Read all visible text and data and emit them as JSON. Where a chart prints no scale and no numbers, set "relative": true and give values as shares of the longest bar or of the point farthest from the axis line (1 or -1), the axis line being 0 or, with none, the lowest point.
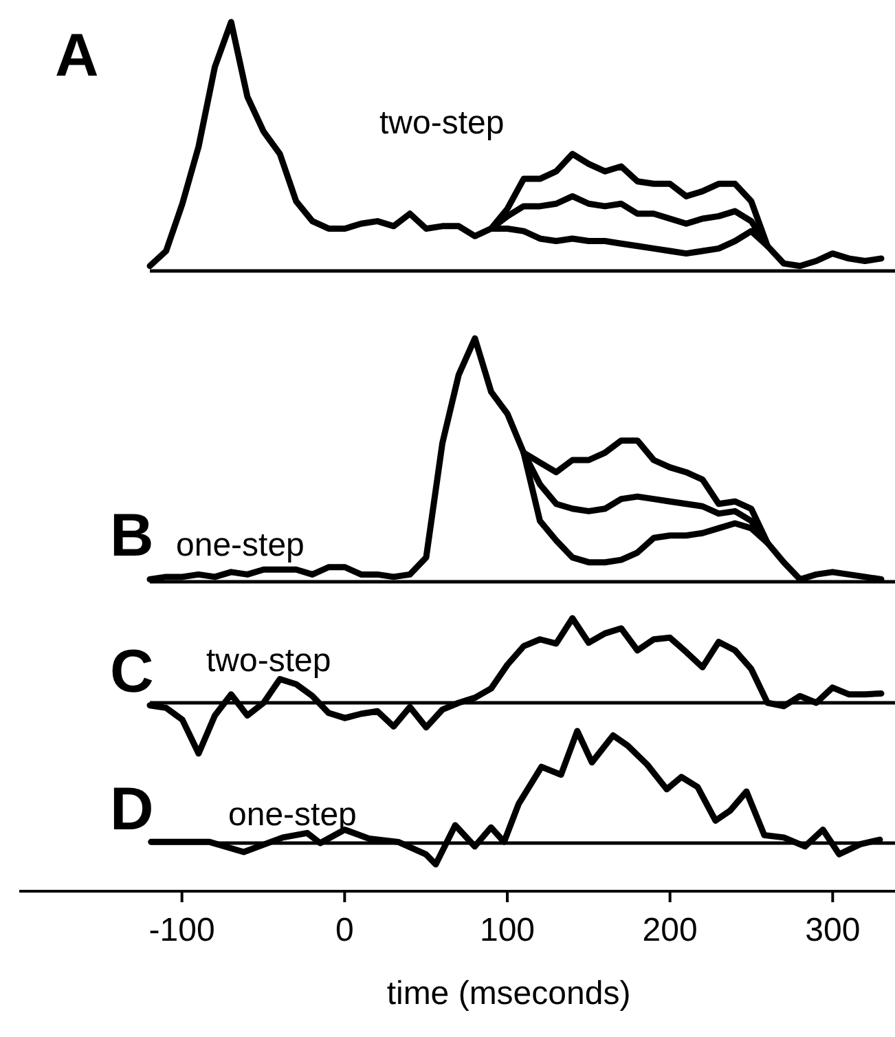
{
  "chart_data": [
    {
      "type": "line",
      "title": "A",
      "annotations": [
        "two-step"
      ],
      "relative": true,
      "tick_labels": false,
      "categories": [
        null,
        null,
        null,
        null,
        null,
        null,
        null,
        null,
        null,
        null,
        null,
        null,
        null,
        null,
        null,
        null,
        null,
        null,
        null,
        null,
        null,
        null,
        null,
        null,
        null,
        null,
        null,
        null,
        null,
        null,
        null,
        null,
        null,
        null,
        null,
        null,
        null,
        null,
        null,
        null,
        null,
        null,
        null,
        null,
        null,
        null
      ],
      "series": [
        {
          "color": "#000000",
          "values": [
            0.02,
            0.08,
            0.27,
            0.5,
            0.82,
            1,
            0.7,
            0.56,
            0.47,
            0.28,
            0.2,
            0.17,
            0.17,
            0.19,
            0.2,
            0.18,
            0.23,
            0.17,
            0.18,
            0.18,
            0.14,
            0.17,
            0.22,
            0.26,
            0.26,
            0.27,
            0.3,
            0.27,
            0.26,
            0.27,
            0.23,
            0.23,
            0.21,
            0.19,
            0.21,
            0.22,
            0.24,
            0.2,
            0.1,
            0.03,
            0.02,
            0.04,
            0.07,
            0.05,
            0.04,
            0.05
          ]
        },
        {
          "color": "#000000",
          "values": [
            null,
            null,
            null,
            null,
            null,
            null,
            null,
            null,
            null,
            null,
            null,
            null,
            null,
            null,
            null,
            null,
            null,
            null,
            null,
            null,
            null,
            0.17,
            0.25,
            0.37,
            0.37,
            0.4,
            0.47,
            0.43,
            0.4,
            0.42,
            0.36,
            0.35,
            0.35,
            0.3,
            0.32,
            0.35,
            0.35,
            0.28,
            0.1,
            null,
            null,
            null,
            null,
            null,
            null,
            null
          ]
        },
        {
          "color": "#000000",
          "values": [
            null,
            null,
            null,
            null,
            null,
            null,
            null,
            null,
            null,
            null,
            null,
            null,
            null,
            null,
            null,
            null,
            null,
            null,
            null,
            null,
            null,
            0.17,
            0.17,
            0.16,
            0.13,
            0.12,
            0.13,
            0.12,
            0.12,
            0.11,
            0.1,
            0.09,
            0.08,
            0.07,
            0.08,
            0.09,
            0.12,
            0.16,
            0.1,
            null,
            null,
            null,
            null,
            null,
            null,
            null
          ]
        }
      ]
    },
    {
      "type": "line",
      "title": "B",
      "annotations": [
        "one-step"
      ],
      "relative": true,
      "tick_labels": false,
      "categories": [
        null,
        null,
        null,
        null,
        null,
        null,
        null,
        null,
        null,
        null,
        null,
        null,
        null,
        null,
        null,
        null,
        null,
        null,
        null,
        null,
        null,
        null,
        null,
        null,
        null,
        null,
        null,
        null,
        null,
        null,
        null,
        null,
        null,
        null,
        null,
        null,
        null,
        null,
        null,
        null,
        null,
        null,
        null,
        null,
        null,
        null
      ],
      "series": [
        {
          "color": "#000000",
          "values": [
            0.01,
            0.02,
            0.02,
            0.03,
            0.02,
            0.04,
            0.03,
            0.05,
            0.05,
            0.05,
            0.03,
            0.06,
            0.06,
            0.03,
            0.03,
            0.02,
            0.03,
            0.1,
            0.57,
            0.85,
            1,
            0.78,
            0.69,
            0.53,
            0.4,
            0.32,
            0.3,
            0.29,
            0.3,
            0.34,
            0.35,
            0.34,
            0.33,
            0.32,
            0.31,
            0.28,
            0.29,
            0.25,
            0.16,
            0.08,
            0.01,
            0.03,
            0.04,
            0.03,
            0.02,
            0.01
          ]
        },
        {
          "color": "#000000",
          "values": [
            null,
            null,
            null,
            null,
            null,
            null,
            null,
            null,
            null,
            null,
            null,
            null,
            null,
            null,
            null,
            null,
            null,
            null,
            null,
            null,
            null,
            null,
            null,
            0.53,
            0.49,
            0.45,
            0.5,
            0.5,
            0.53,
            0.58,
            0.58,
            0.5,
            0.47,
            0.45,
            0.42,
            0.32,
            0.33,
            0.3,
            0.16,
            null,
            null,
            null,
            null,
            null,
            null,
            null
          ]
        },
        {
          "color": "#000000",
          "values": [
            null,
            null,
            null,
            null,
            null,
            null,
            null,
            null,
            null,
            null,
            null,
            null,
            null,
            null,
            null,
            null,
            null,
            null,
            null,
            null,
            null,
            null,
            null,
            0.53,
            0.25,
            0.17,
            0.1,
            0.08,
            0.08,
            0.09,
            0.12,
            0.18,
            0.19,
            0.19,
            0.2,
            0.22,
            0.24,
            0.22,
            0.16,
            null,
            null,
            null,
            null,
            null,
            null,
            null
          ]
        }
      ]
    },
    {
      "type": "line",
      "title": "C",
      "annotations": [
        "two-step"
      ],
      "relative": true,
      "tick_labels": false,
      "categories": [
        null,
        null,
        null,
        null,
        null,
        null,
        null,
        null,
        null,
        null,
        null,
        null,
        null,
        null,
        null,
        null,
        null,
        null,
        null,
        null,
        null,
        null,
        null,
        null,
        null,
        null,
        null,
        null,
        null,
        null,
        null,
        null,
        null,
        null,
        null,
        null,
        null,
        null,
        null,
        null,
        null,
        null,
        null,
        null,
        null,
        null
      ],
      "series": [
        {
          "color": "#000000",
          "values": [
            -0.03,
            -0.06,
            -0.2,
            -0.6,
            -0.15,
            0.1,
            -0.15,
            0,
            0.28,
            0.22,
            0.08,
            -0.12,
            -0.18,
            -0.13,
            -0.1,
            -0.28,
            -0.05,
            -0.29,
            -0.08,
            0,
            0.06,
            0.17,
            0.45,
            0.67,
            0.75,
            0.7,
            1,
            0.71,
            0.82,
            0.88,
            0.62,
            0.75,
            0.77,
            0.6,
            0.42,
            0.72,
            0.62,
            0.4,
            0,
            -0.04,
            0.08,
            0,
            0.18,
            0.1,
            0.1,
            0.11
          ]
        }
      ]
    },
    {
      "type": "line",
      "title": "D",
      "annotations": [
        "one-step"
      ],
      "relative": true,
      "xlim": [
        -200,
        340
      ],
      "xticks": [
        -100,
        0,
        100,
        200,
        300
      ],
      "xlabel": "time (mseconds)",
      "tick_labels": "x",
      "series": [
        {
          "color": "#000000",
          "x": [
            -119,
            -83,
            -62,
            -38,
            -23,
            -15,
            0,
            15,
            33,
            50,
            56,
            68,
            80,
            90,
            98,
            107,
            121,
            133,
            143,
            152,
            165,
            174,
            186,
            198,
            207,
            217,
            228,
            237,
            247,
            258,
            270,
            283,
            294,
            304,
            317,
            329
          ],
          "values": [
            0.01,
            0.01,
            -0.08,
            0.05,
            0.09,
            0,
            0.12,
            0.04,
            0.01,
            -0.1,
            -0.19,
            0.16,
            -0.03,
            0.14,
            0.01,
            0.35,
            0.68,
            0.61,
            1,
            0.72,
            0.96,
            0.87,
            0.7,
            0.48,
            0.59,
            0.5,
            0.2,
            0.29,
            0.46,
            0.07,
            0.05,
            -0.03,
            0.12,
            -0.1,
            -0.01,
            0.03
          ]
        }
      ]
    }
  ]
}
